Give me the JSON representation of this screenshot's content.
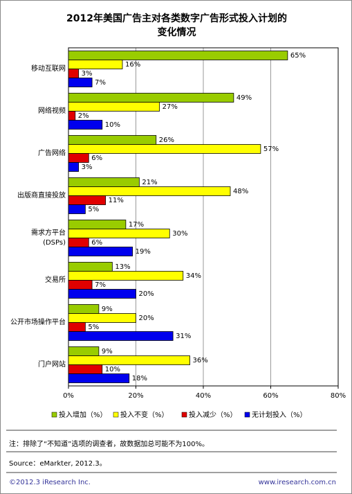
{
  "chart_data": {
    "type": "hbar",
    "title": "2012年美国广告主对各类数字广告形式投入计划的\n变化情况",
    "categories": [
      "移动互联网",
      "网络视频",
      "广告网络",
      "出版商直接投放",
      "需求方平台\n(DSPs)",
      "交易所",
      "公开市场操作平台",
      "门户网站"
    ],
    "series": [
      {
        "name": "投入增加（%）",
        "color": "#99cc00",
        "values": [
          65,
          49,
          26,
          21,
          17,
          13,
          9,
          9
        ],
        "value_labels": [
          "65%",
          "49%",
          "26%",
          "21%",
          "17%",
          "13%",
          "9%",
          "9%"
        ]
      },
      {
        "name": "投入不变（%）",
        "color": "#ffff00",
        "values": [
          16,
          27,
          57,
          48,
          30,
          34,
          20,
          36
        ],
        "value_labels": [
          "16%",
          "27%",
          "57%",
          "48%",
          "30%",
          "34%",
          "20%",
          "36%"
        ]
      },
      {
        "name": "投入减少（%）",
        "color": "#e00000",
        "values": [
          3,
          2,
          6,
          11,
          6,
          7,
          5,
          10
        ],
        "value_labels": [
          "3%",
          "2%",
          "6%",
          "11%",
          "6%",
          "7%",
          "5%",
          "10%"
        ]
      },
      {
        "name": "无计划投入（%）",
        "color": "#0000ee",
        "values": [
          7,
          10,
          3,
          5,
          19,
          20,
          31,
          18
        ],
        "value_labels": [
          "7%",
          "10%",
          "3%",
          "5%",
          "19%",
          "20%",
          "31%",
          "18%"
        ]
      }
    ],
    "xlim": [
      0,
      80
    ],
    "xticks": [
      {
        "value": 0,
        "label": "0%"
      },
      {
        "value": 20,
        "label": "20%"
      },
      {
        "value": 40,
        "label": "40%"
      },
      {
        "value": 60,
        "label": "60%"
      },
      {
        "value": 80,
        "label": "80%"
      }
    ],
    "grid": true,
    "legend": "bottom",
    "note": "注：排除了“不知道”选项的调查者，故数据加总可能不为100%。",
    "source": "Source：eMarkter, 2012.3。",
    "footer_left": "©2012.3 iResearch Inc.",
    "footer_right": "www.iresearch.com.cn"
  }
}
